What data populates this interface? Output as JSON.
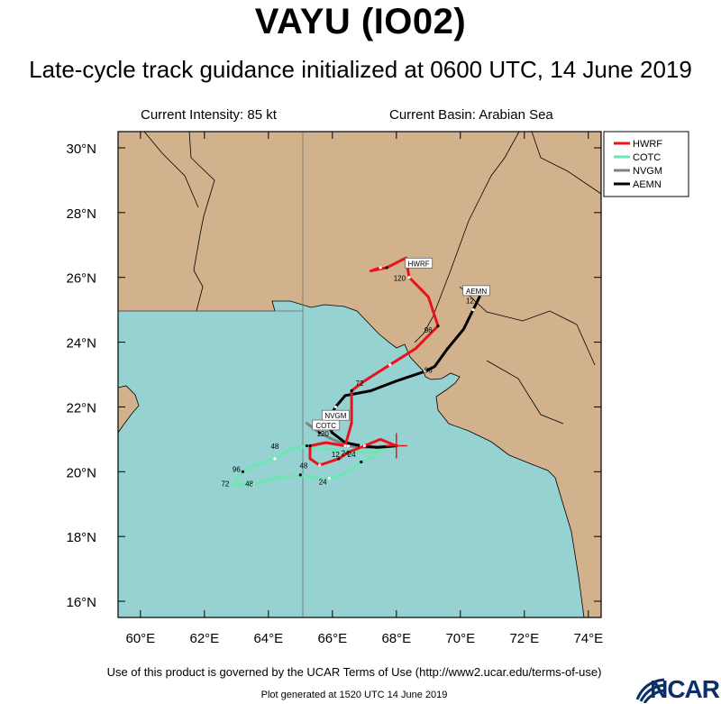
{
  "title": "VAYU (IO02)",
  "subtitle": "Late-cycle track guidance initialized at 0600 UTC, 14 June 2019",
  "current_intensity": "Current Intensity: 85 kt",
  "current_basin": "Current Basin: Arabian Sea",
  "terms": "Use of this product is governed by the UCAR Terms of Use (http://www2.ucar.edu/terms-of-use)",
  "generated": "Plot generated at 1520 UTC  14 June 2019",
  "logo": "NCAR",
  "colors": {
    "land": "#d2b28c",
    "ocean": "#96d2d2",
    "HWRF": "#e8141c",
    "COTC": "#6ee6b4",
    "NVGM": "#828282",
    "AEMN": "#000000"
  },
  "chart_data": {
    "type": "map",
    "projection": "cylindrical",
    "lon_range": [
      59.3,
      74.4
    ],
    "lat_range": [
      15.5,
      30.5
    ],
    "x_ticks": [
      60,
      62,
      64,
      66,
      68,
      70,
      72,
      74
    ],
    "x_tick_labels": [
      "60°E",
      "62°E",
      "64°E",
      "66°E",
      "68°E",
      "70°E",
      "72°E",
      "74°E"
    ],
    "y_ticks": [
      16,
      18,
      20,
      22,
      24,
      26,
      28,
      30
    ],
    "y_tick_labels": [
      "16°N",
      "18°N",
      "20°N",
      "22°N",
      "24°N",
      "26°N",
      "28°N",
      "30°N"
    ],
    "initial_position": {
      "lon": 68.0,
      "lat": 20.8
    },
    "legend": [
      "HWRF",
      "COTC",
      "NVGM",
      "AEMN"
    ],
    "legend_placement": "top-right",
    "series": [
      {
        "name": "HWRF",
        "track": [
          [
            68.0,
            20.8
          ],
          [
            67.5,
            21.0
          ],
          [
            67.0,
            20.8
          ],
          [
            66.5,
            20.6
          ],
          [
            66.2,
            20.4
          ],
          [
            65.9,
            20.3
          ],
          [
            65.6,
            20.2
          ],
          [
            65.3,
            20.4
          ],
          [
            65.3,
            20.8
          ],
          [
            65.8,
            20.9
          ],
          [
            66.4,
            20.8
          ],
          [
            66.6,
            21.5
          ],
          [
            66.6,
            22.5
          ],
          [
            67.0,
            22.8
          ],
          [
            67.8,
            23.3
          ],
          [
            68.6,
            23.8
          ],
          [
            69.3,
            24.5
          ],
          [
            69.0,
            25.4
          ],
          [
            68.4,
            26.0
          ],
          [
            68.3,
            26.6
          ],
          [
            67.7,
            26.3
          ],
          [
            67.2,
            26.2
          ],
          [
            67.5,
            26.3
          ]
        ],
        "labels": [
          {
            "tau": "72",
            "lon": 66.85,
            "lat": 22.65
          },
          {
            "tau": "96",
            "lon": 69.0,
            "lat": 24.3
          },
          {
            "tau": "120",
            "lon": 68.1,
            "lat": 25.9
          }
        ],
        "storm_box": {
          "text": "HWRF",
          "lon": 68.7,
          "lat": 26.4
        }
      },
      {
        "name": "COTC",
        "track": [
          [
            68.0,
            20.8
          ],
          [
            67.3,
            20.6
          ],
          [
            66.5,
            20.6
          ],
          [
            65.8,
            20.7
          ],
          [
            65.2,
            20.8
          ],
          [
            64.7,
            20.7
          ],
          [
            64.2,
            20.4
          ],
          [
            63.6,
            20.2
          ],
          [
            63.2,
            20.0
          ],
          [
            62.9,
            19.6
          ],
          [
            63.5,
            19.6
          ],
          [
            64.2,
            19.8
          ],
          [
            65.0,
            19.9
          ],
          [
            65.5,
            19.8
          ],
          [
            65.9,
            19.8
          ],
          [
            66.3,
            19.9
          ],
          [
            66.9,
            20.3
          ],
          [
            67.4,
            20.5
          ]
        ],
        "labels": [
          {
            "tau": "48",
            "lon": 64.2,
            "lat": 20.7
          },
          {
            "tau": "96",
            "lon": 63.0,
            "lat": 20.0
          },
          {
            "tau": "72",
            "lon": 62.65,
            "lat": 19.55
          },
          {
            "tau": "48",
            "lon": 63.4,
            "lat": 19.55
          },
          {
            "tau": "24",
            "lon": 65.7,
            "lat": 19.6
          },
          {
            "tau": "24",
            "lon": 66.4,
            "lat": 20.5
          },
          {
            "tau": "48",
            "lon": 65.1,
            "lat": 20.1
          }
        ],
        "storm_box": {
          "text": "COTC",
          "lon": 65.8,
          "lat": 21.4
        }
      },
      {
        "name": "NVGM",
        "track": [
          [
            68.0,
            20.8
          ],
          [
            67.0,
            20.75
          ],
          [
            66.5,
            20.8
          ],
          [
            66.0,
            21.0
          ],
          [
            65.6,
            21.2
          ],
          [
            65.2,
            21.5
          ]
        ],
        "labels": [],
        "storm_box": {
          "text": "NVGM",
          "lon": 66.1,
          "lat": 21.7
        }
      },
      {
        "name": "AEMN",
        "track": [
          [
            68.0,
            20.8
          ],
          [
            67.4,
            20.75
          ],
          [
            66.9,
            20.8
          ],
          [
            66.4,
            20.9
          ],
          [
            66.0,
            21.2
          ],
          [
            65.8,
            21.5
          ],
          [
            66.1,
            22.0
          ],
          [
            66.4,
            22.35
          ],
          [
            67.2,
            22.5
          ],
          [
            68.0,
            22.8
          ],
          [
            68.9,
            23.1
          ],
          [
            69.2,
            23.25
          ],
          [
            69.6,
            23.8
          ],
          [
            70.1,
            24.4
          ],
          [
            70.4,
            25.0
          ],
          [
            70.6,
            25.4
          ]
        ],
        "labels": [
          {
            "tau": "12",
            "lon": 66.1,
            "lat": 20.45
          },
          {
            "tau": "24",
            "lon": 66.6,
            "lat": 20.45
          },
          {
            "tau": "120",
            "lon": 65.7,
            "lat": 21.1
          },
          {
            "tau": "96",
            "lon": 69.0,
            "lat": 23.05
          },
          {
            "tau": "12",
            "lon": 70.3,
            "lat": 25.2
          }
        ],
        "storm_box": {
          "text": "AEMN",
          "lon": 70.5,
          "lat": 25.55
        }
      }
    ]
  }
}
